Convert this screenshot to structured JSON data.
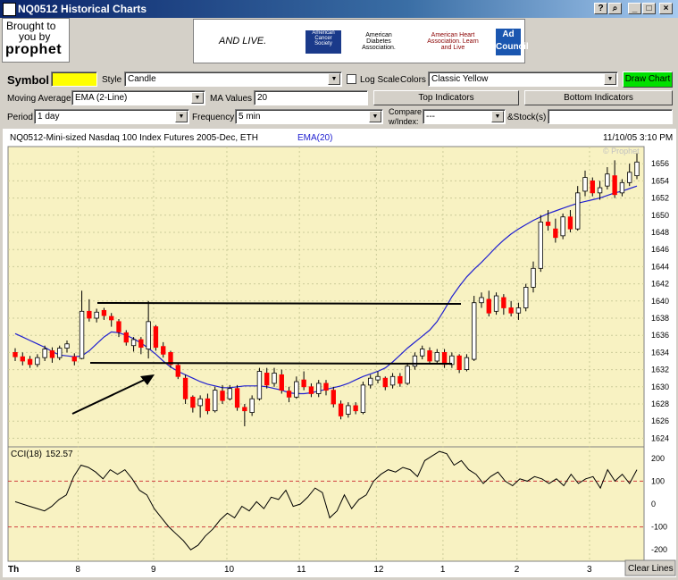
{
  "window": {
    "title": "NQ0512 Historical Charts",
    "buttons": [
      "?",
      "⌕",
      "_",
      "□",
      "×"
    ]
  },
  "brand": {
    "line1": "Brought to",
    "line2": "you by",
    "name": "prophet"
  },
  "ads": [
    "AND LIVE.",
    "American Cancer Society",
    "American Diabetes Association.",
    "American Heart Association. Learn and Live",
    "Ad Council"
  ],
  "toolbar": {
    "symbol_label": "Symbol",
    "symbol_value": "",
    "style_label": "Style",
    "style_value": "Candle",
    "logscale_label": "Log Scale",
    "colors_label": "Colors",
    "colors_value": "Classic Yellow",
    "draw_button": "Draw Chart",
    "ma_label": "Moving Average",
    "ma_value": "EMA (2-Line)",
    "mavalues_label": "MA Values",
    "mavalues_value": "20",
    "top_indicators": "Top Indicators",
    "bottom_indicators": "Bottom Indicators",
    "period_label": "Period",
    "period_value": "1 day",
    "frequency_label": "Frequency",
    "frequency_value": "5 min",
    "compare_label_1": "Compare",
    "compare_label_2": "w/Index:",
    "compare_value": "---",
    "stocks_label": "&Stock(s)",
    "stocks_value": ""
  },
  "chart": {
    "header": "NQ0512-Mini-sized Nasdaq 100 Index Futures 2005-Dec, ETH",
    "ema_label": "EMA(20)",
    "timestamp": "11/10/05 3:10 PM",
    "watermark": "© Prophet",
    "cci_label": "CCI(18)",
    "cci_value": "152.57",
    "clear_button": "Clear Lines",
    "x_ticks": [
      "Th",
      "8",
      "9",
      "10",
      "11",
      "12",
      "1",
      "2",
      "3"
    ],
    "colors": {
      "bg": "#f8f2c2",
      "up": "#ffffff",
      "down": "#ff0000",
      "ema": "#2020d0",
      "grid": "#cccc99",
      "cci_ref": "#d04040"
    }
  },
  "chart_data": [
    {
      "type": "candlestick",
      "title": "NQ0512-Mini-sized Nasdaq 100 Index Futures 2005-Dec, ETH",
      "y_ticks": [
        1624,
        1626,
        1628,
        1630,
        1632,
        1634,
        1636,
        1638,
        1640,
        1642,
        1644,
        1646,
        1648,
        1650,
        1652,
        1654,
        1656
      ],
      "ylim": [
        1623,
        1658
      ],
      "x_ticks": [
        "Th",
        "8",
        "9",
        "10",
        "11",
        "12",
        "1",
        "2",
        "3"
      ],
      "ema_series": {
        "name": "EMA(20)",
        "values": [
          1636.2,
          1635.8,
          1635.4,
          1635,
          1634.6,
          1634.1,
          1633.7,
          1633.6,
          1633.5,
          1633.6,
          1634.2,
          1635,
          1635.8,
          1636.4,
          1636.3,
          1636,
          1635.6,
          1635.1,
          1634.5,
          1633.8,
          1633,
          1632.3,
          1631.8,
          1631.4,
          1631,
          1630.6,
          1630.3,
          1630.1,
          1629.9,
          1629.9,
          1630,
          1630.1,
          1630.1,
          1630.1,
          1630,
          1629.8,
          1629.6,
          1629.3,
          1629.2,
          1629.2,
          1629.3,
          1629.5,
          1629.7,
          1629.9,
          1630.1,
          1630.4,
          1630.8,
          1631.2,
          1631.5,
          1631.8,
          1632.2,
          1632.9,
          1633.7,
          1634.5,
          1635.2,
          1635.9,
          1636.6,
          1637.6,
          1639,
          1640.5,
          1641.7,
          1642.8,
          1643.7,
          1644.5,
          1645.4,
          1646.3,
          1647.1,
          1647.8,
          1648.4,
          1648.9,
          1649.4,
          1649.8,
          1650.2,
          1650.5,
          1650.8,
          1651.1,
          1651.4,
          1651.6,
          1651.8,
          1652,
          1652.3,
          1652.6,
          1652.8,
          1653.1,
          1653.4
        ]
      },
      "candles": [
        [
          1634.0,
          1633.5,
          1634.5,
          1633.0
        ],
        [
          1633.5,
          1633.0,
          1634.0,
          1632.5
        ],
        [
          1633.2,
          1632.6,
          1633.6,
          1632.2
        ],
        [
          1632.6,
          1633.4,
          1633.8,
          1632.3
        ],
        [
          1633.4,
          1634.4,
          1634.8,
          1633.0
        ],
        [
          1634.2,
          1633.4,
          1634.6,
          1632.8
        ],
        [
          1633.4,
          1634.5,
          1634.8,
          1633.1
        ],
        [
          1634.5,
          1635.0,
          1635.4,
          1634.0
        ],
        [
          1633.5,
          1633.0,
          1633.9,
          1632.5
        ],
        [
          1633.3,
          1638.8,
          1641.2,
          1633.2
        ],
        [
          1638.8,
          1638.0,
          1640.2,
          1637.6
        ],
        [
          1638.0,
          1638.7,
          1639.1,
          1637.5
        ],
        [
          1638.9,
          1638.3,
          1639.2,
          1637.8
        ],
        [
          1638.2,
          1637.8,
          1638.6,
          1637.0
        ],
        [
          1637.6,
          1636.4,
          1637.9,
          1635.8
        ],
        [
          1636.3,
          1635.2,
          1636.6,
          1634.8
        ],
        [
          1634.8,
          1635.5,
          1635.8,
          1634.1
        ],
        [
          1635.5,
          1634.6,
          1635.8,
          1633.8
        ],
        [
          1634.4,
          1637.6,
          1640.0,
          1633.3
        ],
        [
          1637.0,
          1634.6,
          1637.2,
          1634.2
        ],
        [
          1634.7,
          1633.8,
          1635.2,
          1633.4
        ],
        [
          1634.0,
          1632.6,
          1634.2,
          1632.2
        ],
        [
          1632.5,
          1631.2,
          1632.8,
          1630.9
        ],
        [
          1631.0,
          1628.6,
          1631.4,
          1628.0
        ],
        [
          1628.8,
          1627.6,
          1629.0,
          1627.0
        ],
        [
          1627.8,
          1628.6,
          1629.0,
          1626.4
        ],
        [
          1628.6,
          1627.2,
          1629.2,
          1626.8
        ],
        [
          1627.2,
          1629.6,
          1630.0,
          1627.0
        ],
        [
          1629.5,
          1628.4,
          1630.2,
          1628.0
        ],
        [
          1628.6,
          1629.8,
          1630.2,
          1628.4
        ],
        [
          1629.8,
          1627.6,
          1630.2,
          1627.2
        ],
        [
          1627.6,
          1627.2,
          1628.0,
          1625.4
        ],
        [
          1627.0,
          1628.6,
          1629.0,
          1626.6
        ],
        [
          1628.6,
          1631.8,
          1632.2,
          1628.4
        ],
        [
          1631.6,
          1630.2,
          1632.2,
          1629.8
        ],
        [
          1630.4,
          1631.6,
          1632.2,
          1630.0
        ],
        [
          1631.4,
          1629.6,
          1632.0,
          1629.2
        ],
        [
          1629.5,
          1628.8,
          1630.0,
          1628.2
        ],
        [
          1628.8,
          1630.6,
          1631.2,
          1628.6
        ],
        [
          1630.8,
          1630.0,
          1631.8,
          1629.6
        ],
        [
          1630.0,
          1629.2,
          1630.4,
          1628.8
        ],
        [
          1629.2,
          1630.4,
          1630.8,
          1628.8
        ],
        [
          1630.4,
          1629.6,
          1630.8,
          1629.0
        ],
        [
          1629.6,
          1628.0,
          1630.0,
          1627.6
        ],
        [
          1628.0,
          1626.6,
          1628.4,
          1626.2
        ],
        [
          1626.8,
          1627.8,
          1628.2,
          1626.4
        ],
        [
          1627.8,
          1627.2,
          1628.2,
          1626.8
        ],
        [
          1627.0,
          1630.2,
          1630.6,
          1626.8
        ],
        [
          1630.2,
          1631.0,
          1631.4,
          1629.8
        ],
        [
          1630.8,
          1631.2,
          1631.8,
          1630.4
        ],
        [
          1631.0,
          1630.0,
          1631.2,
          1629.6
        ],
        [
          1630.2,
          1631.2,
          1631.6,
          1629.8
        ],
        [
          1631.2,
          1630.4,
          1631.6,
          1630.0
        ],
        [
          1630.4,
          1632.4,
          1632.8,
          1630.2
        ],
        [
          1632.4,
          1633.6,
          1634.0,
          1632.0
        ],
        [
          1633.6,
          1634.4,
          1634.8,
          1633.2
        ],
        [
          1634.2,
          1633.0,
          1634.6,
          1632.6
        ],
        [
          1633.0,
          1634.0,
          1634.4,
          1632.6
        ],
        [
          1634.0,
          1632.6,
          1634.4,
          1632.2
        ],
        [
          1632.6,
          1633.6,
          1634.0,
          1632.2
        ],
        [
          1633.6,
          1632.0,
          1633.8,
          1631.6
        ],
        [
          1632.0,
          1633.4,
          1633.8,
          1631.8
        ],
        [
          1633.2,
          1639.8,
          1640.6,
          1633.0
        ],
        [
          1639.8,
          1640.4,
          1641.0,
          1639.2
        ],
        [
          1640.2,
          1638.6,
          1641.2,
          1638.2
        ],
        [
          1638.8,
          1640.6,
          1641.0,
          1638.4
        ],
        [
          1640.4,
          1639.2,
          1640.8,
          1638.4
        ],
        [
          1639.2,
          1638.6,
          1640.0,
          1638.2
        ],
        [
          1638.6,
          1639.2,
          1639.8,
          1637.8
        ],
        [
          1639.2,
          1641.6,
          1642.0,
          1638.8
        ],
        [
          1641.6,
          1643.8,
          1644.6,
          1641.0
        ],
        [
          1643.8,
          1649.2,
          1650.0,
          1643.4
        ],
        [
          1649.2,
          1648.8,
          1650.6,
          1648.2
        ],
        [
          1648.4,
          1647.4,
          1649.6,
          1646.8
        ],
        [
          1647.6,
          1649.8,
          1650.2,
          1647.2
        ],
        [
          1649.8,
          1648.4,
          1650.6,
          1648.0
        ],
        [
          1648.4,
          1652.6,
          1653.4,
          1648.2
        ],
        [
          1652.8,
          1654.4,
          1655.2,
          1652.2
        ],
        [
          1654.0,
          1652.6,
          1654.4,
          1652.2
        ],
        [
          1652.6,
          1653.2,
          1654.0,
          1651.8
        ],
        [
          1653.4,
          1654.8,
          1655.6,
          1653.0
        ],
        [
          1654.6,
          1652.4,
          1656.4,
          1652.0
        ],
        [
          1652.6,
          1653.8,
          1654.2,
          1652.2
        ],
        [
          1653.8,
          1655.0,
          1656.0,
          1653.4
        ],
        [
          1654.6,
          1656.2,
          1657.2,
          1654.2
        ]
      ],
      "annotations": "trend lines and arrow drawn by user"
    },
    {
      "type": "line",
      "title": "CCI(18) 152.57",
      "y_ticks": [
        200,
        100,
        0,
        -100,
        -200
      ],
      "ylim": [
        -250,
        250
      ],
      "reference_lines": [
        100,
        -100
      ],
      "series": [
        {
          "name": "CCI(18)",
          "values": [
            10,
            0,
            -10,
            -20,
            -30,
            -10,
            20,
            40,
            120,
            170,
            160,
            140,
            110,
            150,
            130,
            150,
            110,
            60,
            40,
            -20,
            -60,
            -100,
            -130,
            -160,
            -200,
            -180,
            -140,
            -110,
            -70,
            -40,
            -60,
            -10,
            -30,
            10,
            -20,
            30,
            20,
            60,
            -10,
            0,
            30,
            70,
            50,
            -60,
            -30,
            40,
            -20,
            20,
            40,
            100,
            130,
            150,
            140,
            160,
            150,
            120,
            190,
            210,
            230,
            220,
            170,
            190,
            150,
            130,
            90,
            120,
            140,
            100,
            80,
            110,
            100,
            120,
            110,
            90,
            110,
            80,
            130,
            90,
            110,
            120,
            70,
            150,
            100,
            130,
            90,
            150
          ]
        }
      ]
    }
  ]
}
